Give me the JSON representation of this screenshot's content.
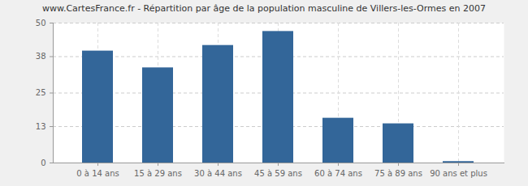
{
  "chart_data": {
    "type": "bar",
    "title": "www.CartesFrance.fr - Répartition par âge de la population masculine de Villers-les-Ormes en 2007",
    "categories": [
      "0 à 14 ans",
      "15 à 29 ans",
      "30 à 44 ans",
      "45 à 59 ans",
      "60 à 74 ans",
      "75 à 89 ans",
      "90 ans et plus"
    ],
    "values": [
      40,
      34,
      42,
      47,
      16,
      14,
      0.5
    ],
    "color": "#336699",
    "ylim": [
      0,
      50
    ],
    "yticks": [
      0,
      13,
      25,
      38,
      50
    ],
    "grid": true
  }
}
